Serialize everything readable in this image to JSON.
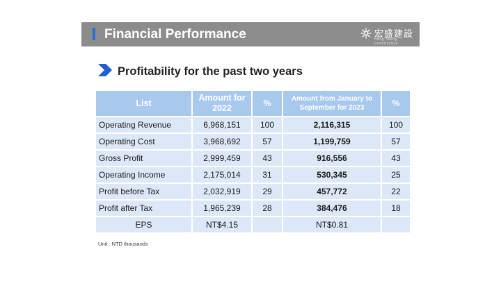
{
  "header": {
    "title": "Financial Performance",
    "logo_text": "宏盛建設",
    "logo_subtext": "Hong Sheng Construction",
    "bar_color": "#8c8c8c",
    "accent_color": "#2a6fd6"
  },
  "section": {
    "title": "Profitability for the past two years",
    "arrow_icon": "arrow-right-icon",
    "arrow_color": "#1f5fd1"
  },
  "table": {
    "header_color": "#a9c8ee",
    "row_color": "#dce8f7",
    "columns": {
      "list": "List",
      "amount_2022": "Amount for 2022",
      "pct_2022": "%",
      "amount_2023": "Amount from January to September for 2023",
      "pct_2023": "%"
    },
    "rows": [
      {
        "item": "Operating Revenue",
        "amount_2022": "6,968,151",
        "pct_2022": "100",
        "amount_2023": "2,116,315",
        "pct_2023": "100"
      },
      {
        "item": "Operating Cost",
        "amount_2022": "3,968,692",
        "pct_2022": "57",
        "amount_2023": "1,199,759",
        "pct_2023": "57"
      },
      {
        "item": "Gross Profit",
        "amount_2022": "2,999,459",
        "pct_2022": "43",
        "amount_2023": "916,556",
        "pct_2023": "43"
      },
      {
        "item": "Operating Income",
        "amount_2022": "2,175,014",
        "pct_2022": "31",
        "amount_2023": "530,345",
        "pct_2023": "25"
      },
      {
        "item": "Profit before Tax",
        "amount_2022": "2,032,919",
        "pct_2022": "29",
        "amount_2023": "457,772",
        "pct_2023": "22"
      },
      {
        "item": "Profit after Tax",
        "amount_2022": "1,965,239",
        "pct_2022": "28",
        "amount_2023": "384,476",
        "pct_2023": "18"
      }
    ],
    "eps": {
      "item": "EPS",
      "amount_2022": "NT$4.15",
      "amount_2023": "NT$0.81"
    }
  },
  "unit_note": "Unit : NTD thousands"
}
